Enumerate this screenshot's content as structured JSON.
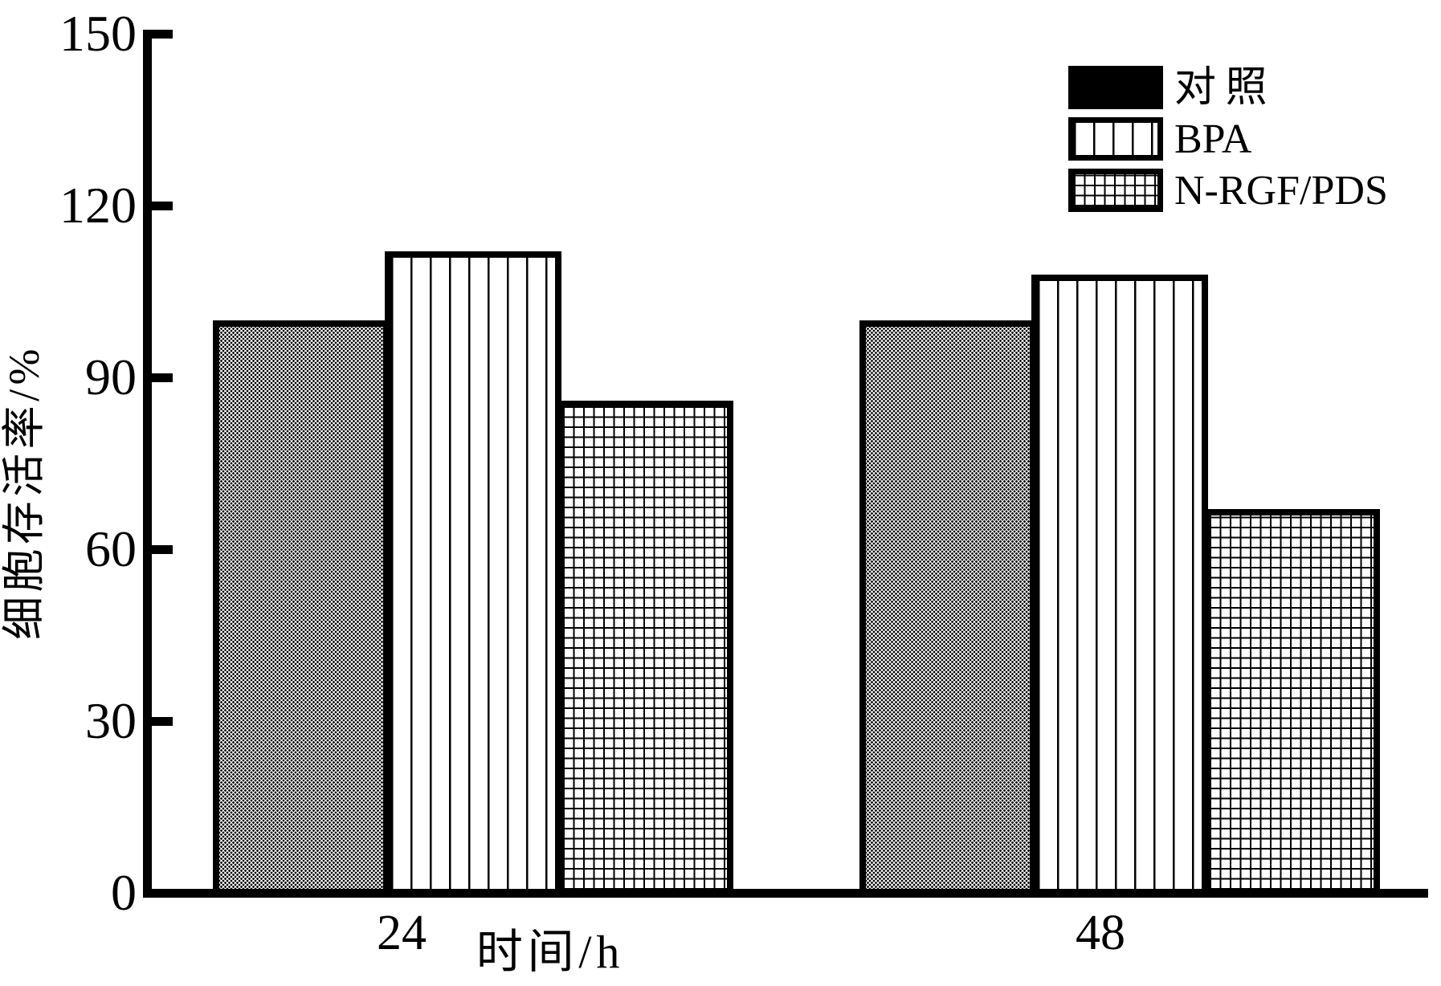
{
  "figure": {
    "background": "#ffffff",
    "foreground": "#000000"
  },
  "chart_data": {
    "type": "bar",
    "title": "",
    "categories": [
      "24",
      "48"
    ],
    "series": [
      {
        "name": "对照",
        "values": [
          100,
          100
        ],
        "bar_pattern": "halftone-dots",
        "legend_swatch": "solid-black"
      },
      {
        "name": "BPA",
        "values": [
          112,
          108
        ],
        "bar_pattern": "vertical-lines",
        "legend_swatch": "vertical-lines"
      },
      {
        "name": "N-RGF/PDS",
        "values": [
          86,
          67
        ],
        "bar_pattern": "grid-crosshatch",
        "legend_swatch": "grid-crosshatch"
      }
    ],
    "xlabel": "时间/h",
    "ylabel": "细胞存活率/%",
    "ylim": [
      0,
      150
    ],
    "yticks": [
      0,
      30,
      60,
      90,
      120,
      150
    ],
    "grid": false,
    "legend_position": "top-right",
    "bar_outline_color": "#000000"
  }
}
